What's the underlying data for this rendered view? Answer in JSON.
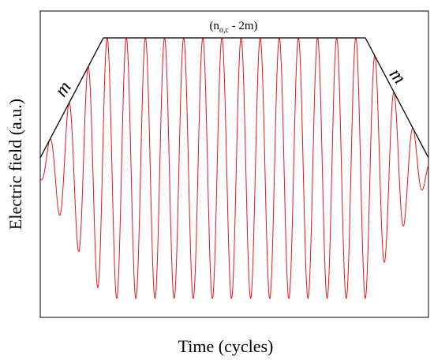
{
  "chart_data": {
    "type": "line",
    "title": "",
    "xlabel": "Time (cycles)",
    "ylabel": "Electric field (a.u.)",
    "xticks": [],
    "yticks": [],
    "grid": false,
    "legend": "none",
    "color_signal": "#e8151b",
    "color_envelope": "#000000",
    "pulse": {
      "ramp_up_cycles": 3.3,
      "flat_cycles": 13.7,
      "ramp_down_cycles": 3.3,
      "total_cycles": 20.3,
      "peak_amplitude": 1.0,
      "start_amplitude": 0.08
    },
    "annotations": {
      "ramp_up_label": "m",
      "ramp_down_label": "m",
      "flat_label_prefix": "(n",
      "flat_label_subscript": "o,c",
      "flat_label_suffix": " - 2m)"
    }
  }
}
